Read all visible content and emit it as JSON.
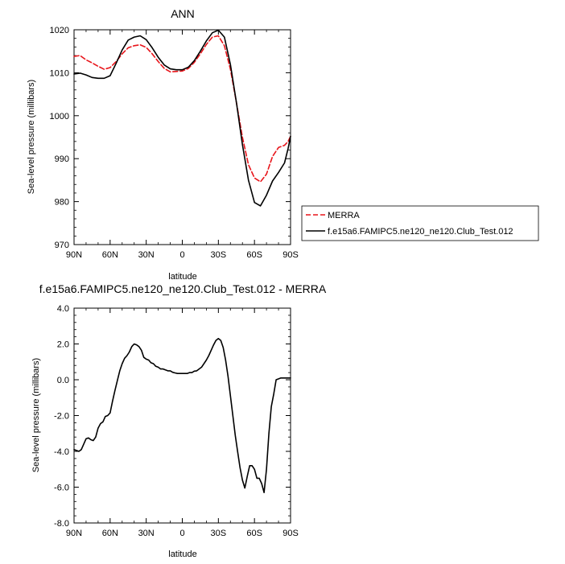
{
  "chart_data": [
    {
      "type": "line",
      "title": "ANN",
      "xlabel": "latitude",
      "ylabel": "Sea-level pressure (millibars)",
      "ylim": [
        970,
        1020
      ],
      "xlim": [
        90,
        -90
      ],
      "x_tick_values": [
        90,
        60,
        30,
        0,
        -30,
        -60,
        -90
      ],
      "x_tick_labels": [
        "90N",
        "60N",
        "30N",
        "0",
        "30S",
        "60S",
        "90S"
      ],
      "y_tick_values": [
        970,
        980,
        990,
        1000,
        1010,
        1020
      ],
      "y_tick_labels": [
        "970",
        "980",
        "990",
        "1000",
        "1010",
        "1020"
      ],
      "grid": false,
      "legend_position": "right",
      "series": [
        {
          "name": "MERRA",
          "color": "#e8151b",
          "dash": "dashed",
          "x": [
            90,
            85,
            80,
            75,
            70,
            65,
            60,
            55,
            50,
            45,
            40,
            35,
            30,
            25,
            20,
            15,
            10,
            5,
            0,
            -5,
            -10,
            -15,
            -20,
            -25,
            -30,
            -35,
            -40,
            -45,
            -50,
            -55,
            -60,
            -65,
            -70,
            -75,
            -80,
            -85,
            -88,
            -90
          ],
          "y": [
            1013.8,
            1014.0,
            1013.0,
            1012.3,
            1011.5,
            1010.8,
            1011.2,
            1012.6,
            1014.4,
            1015.8,
            1016.3,
            1016.5,
            1015.9,
            1014.4,
            1012.6,
            1011.0,
            1010.2,
            1010.3,
            1010.4,
            1011.0,
            1012.4,
            1014.4,
            1016.6,
            1018.3,
            1018.6,
            1016.3,
            1010.8,
            1003.0,
            995.0,
            988.6,
            985.5,
            984.6,
            986.4,
            990.5,
            992.6,
            993.1,
            994.0,
            995.2
          ]
        },
        {
          "name": "f.e15a6.FAMIPC5.ne120_ne120.Club_Test.012",
          "color": "#000000",
          "dash": "solid",
          "x": [
            90,
            85,
            80,
            75,
            70,
            65,
            60,
            55,
            50,
            45,
            40,
            35,
            30,
            25,
            20,
            15,
            10,
            5,
            0,
            -5,
            -10,
            -15,
            -20,
            -25,
            -30,
            -35,
            -40,
            -45,
            -50,
            -55,
            -60,
            -65,
            -70,
            -75,
            -80,
            -85,
            -88,
            -90
          ],
          "y": [
            1009.7,
            1009.9,
            1009.5,
            1008.9,
            1008.7,
            1008.7,
            1009.3,
            1012.2,
            1015.3,
            1017.6,
            1018.3,
            1018.6,
            1017.7,
            1015.8,
            1013.6,
            1011.8,
            1010.9,
            1010.7,
            1010.7,
            1011.3,
            1012.8,
            1015.0,
            1017.4,
            1019.3,
            1019.9,
            1018.3,
            1011.9,
            1003.0,
            993.3,
            985.0,
            979.8,
            979.0,
            981.5,
            984.8,
            986.8,
            989.0,
            992.4,
            995.2
          ]
        }
      ]
    },
    {
      "type": "line",
      "title": "f.e15a6.FAMIPC5.ne120_ne120.Club_Test.012 - MERRA",
      "xlabel": "latitude",
      "ylabel": "Sea-level pressure (millibars)",
      "ylim": [
        -8,
        4
      ],
      "xlim": [
        90,
        -90
      ],
      "x_tick_values": [
        90,
        60,
        30,
        0,
        -30,
        -60,
        -90
      ],
      "x_tick_labels": [
        "90N",
        "60N",
        "30N",
        "0",
        "30S",
        "60S",
        "90S"
      ],
      "y_tick_values": [
        -8,
        -6,
        -4,
        -2,
        0,
        2,
        4
      ],
      "y_tick_labels": [
        "-8.0",
        "-6.0",
        "-4.0",
        "-2.0",
        "0.0",
        "2.0",
        "4.0"
      ],
      "grid": false,
      "series": [
        {
          "color": "#000000",
          "dash": "solid",
          "x": [
            90,
            88,
            86,
            84,
            82,
            80,
            78,
            76,
            74,
            72,
            70,
            68,
            66,
            64,
            62,
            60,
            58,
            56,
            54,
            52,
            50,
            48,
            46,
            44,
            42,
            40,
            38,
            36,
            34,
            32,
            30,
            28,
            26,
            24,
            22,
            20,
            18,
            16,
            14,
            12,
            10,
            8,
            6,
            4,
            2,
            0,
            -2,
            -4,
            -6,
            -8,
            -10,
            -12,
            -14,
            -16,
            -18,
            -20,
            -22,
            -24,
            -26,
            -28,
            -30,
            -32,
            -34,
            -36,
            -38,
            -40,
            -42,
            -44,
            -46,
            -48,
            -50,
            -52,
            -54,
            -56,
            -58,
            -60,
            -62,
            -64,
            -66,
            -68,
            -70,
            -72,
            -74,
            -76,
            -78,
            -80,
            -82,
            -84,
            -86,
            -88,
            -90
          ],
          "y": [
            -3.9,
            -3.95,
            -4.0,
            -3.9,
            -3.6,
            -3.3,
            -3.25,
            -3.35,
            -3.4,
            -3.2,
            -2.7,
            -2.45,
            -2.35,
            -2.05,
            -2.0,
            -1.85,
            -1.2,
            -0.6,
            -0.05,
            0.5,
            0.9,
            1.2,
            1.35,
            1.55,
            1.85,
            2.0,
            1.95,
            1.85,
            1.65,
            1.25,
            1.15,
            1.1,
            0.95,
            0.9,
            0.75,
            0.7,
            0.6,
            0.6,
            0.55,
            0.5,
            0.5,
            0.42,
            0.38,
            0.35,
            0.35,
            0.35,
            0.35,
            0.35,
            0.4,
            0.4,
            0.48,
            0.5,
            0.6,
            0.7,
            0.9,
            1.1,
            1.35,
            1.65,
            1.95,
            2.2,
            2.3,
            2.2,
            1.8,
            1.1,
            0.2,
            -0.9,
            -2.0,
            -3.1,
            -4.0,
            -4.9,
            -5.6,
            -6.05,
            -5.4,
            -4.8,
            -4.8,
            -5.0,
            -5.5,
            -5.5,
            -5.8,
            -6.3,
            -5.0,
            -3.0,
            -1.5,
            -0.8,
            0.0,
            0.05,
            0.1,
            0.1,
            0.1,
            0.1,
            0.1
          ]
        }
      ]
    }
  ]
}
